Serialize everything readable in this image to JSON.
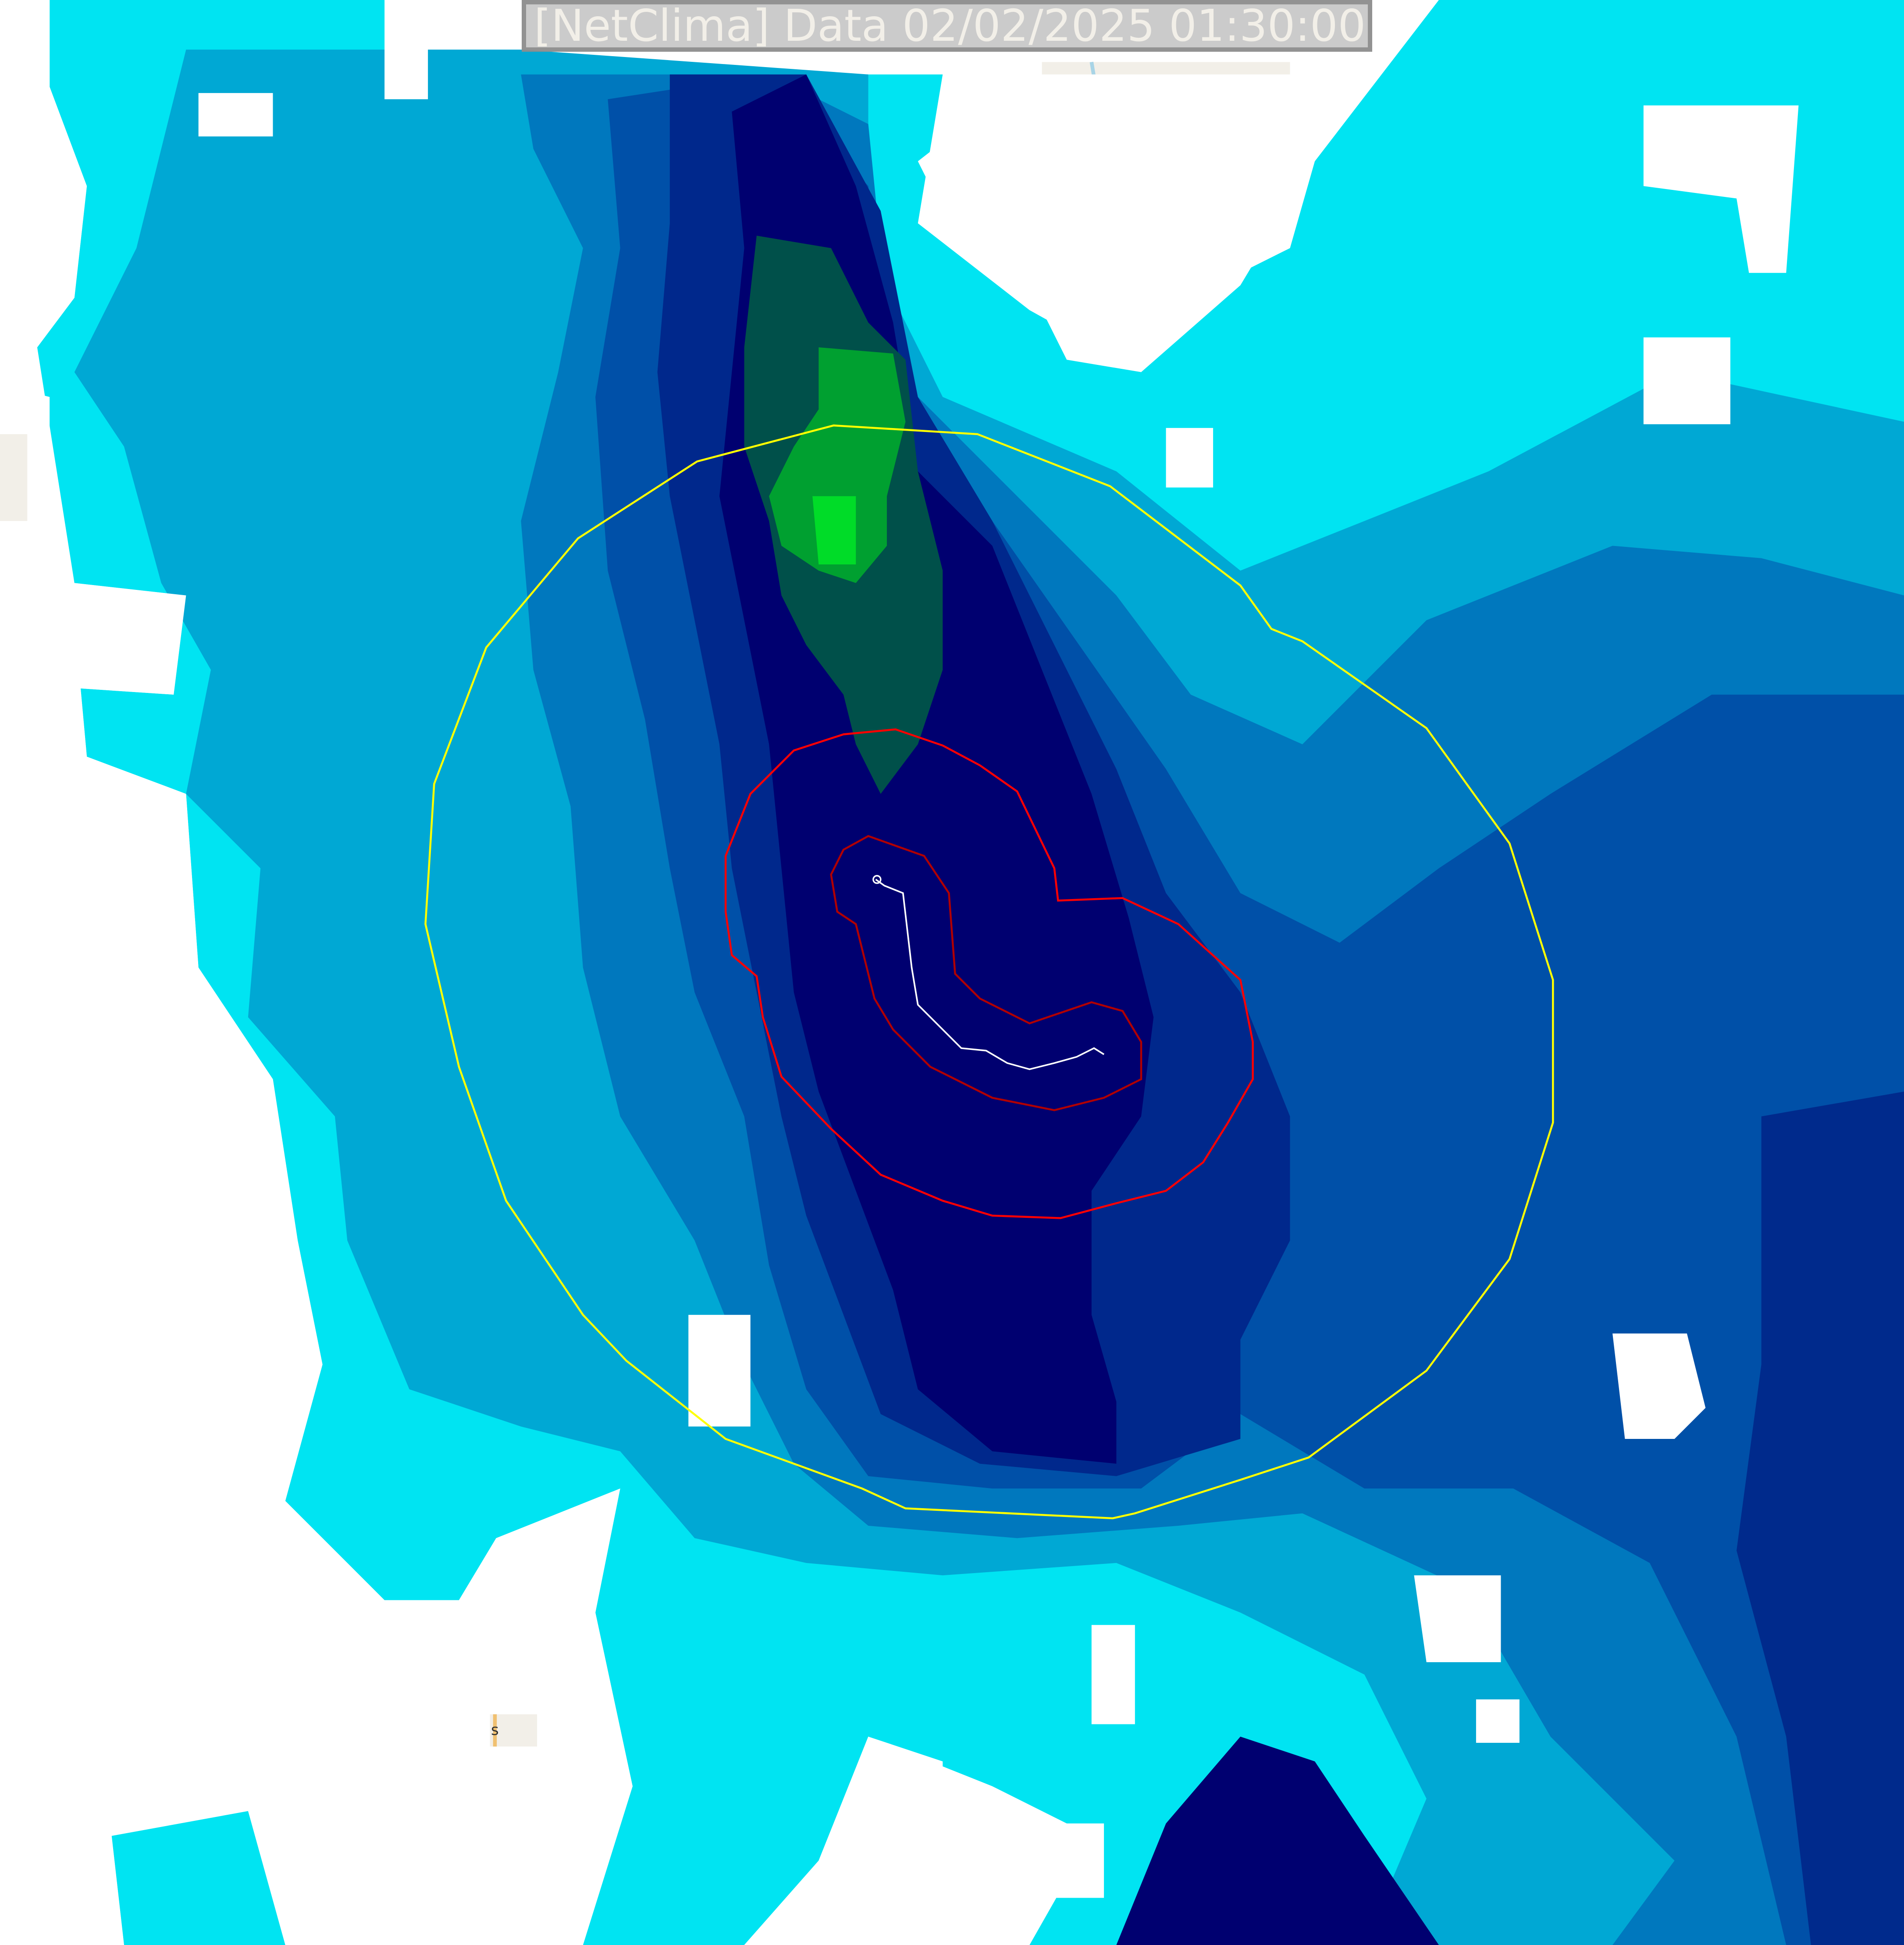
{
  "map": {
    "title": "[NetClima] Data 02/02/2025 01:30:00",
    "place_label": "s",
    "layers": [
      "radar-reflectivity",
      "yellow-contour",
      "red-contour",
      "dark-red-contour",
      "storm-track"
    ],
    "colors": {
      "light_cyan": "#00ffff",
      "cyan": "#00d8e8",
      "mid_blue": "#0096c8",
      "blue": "#0064b4",
      "dark_blue": "#002896",
      "navy": "#000064",
      "dark_green": "#005a46",
      "green": "#00c828",
      "yellow_contour": "#ffff00",
      "red_contour": "#ff0000",
      "dark_red_contour": "#aa0000",
      "track": "#ffffff",
      "land": "#f2efe8"
    }
  }
}
